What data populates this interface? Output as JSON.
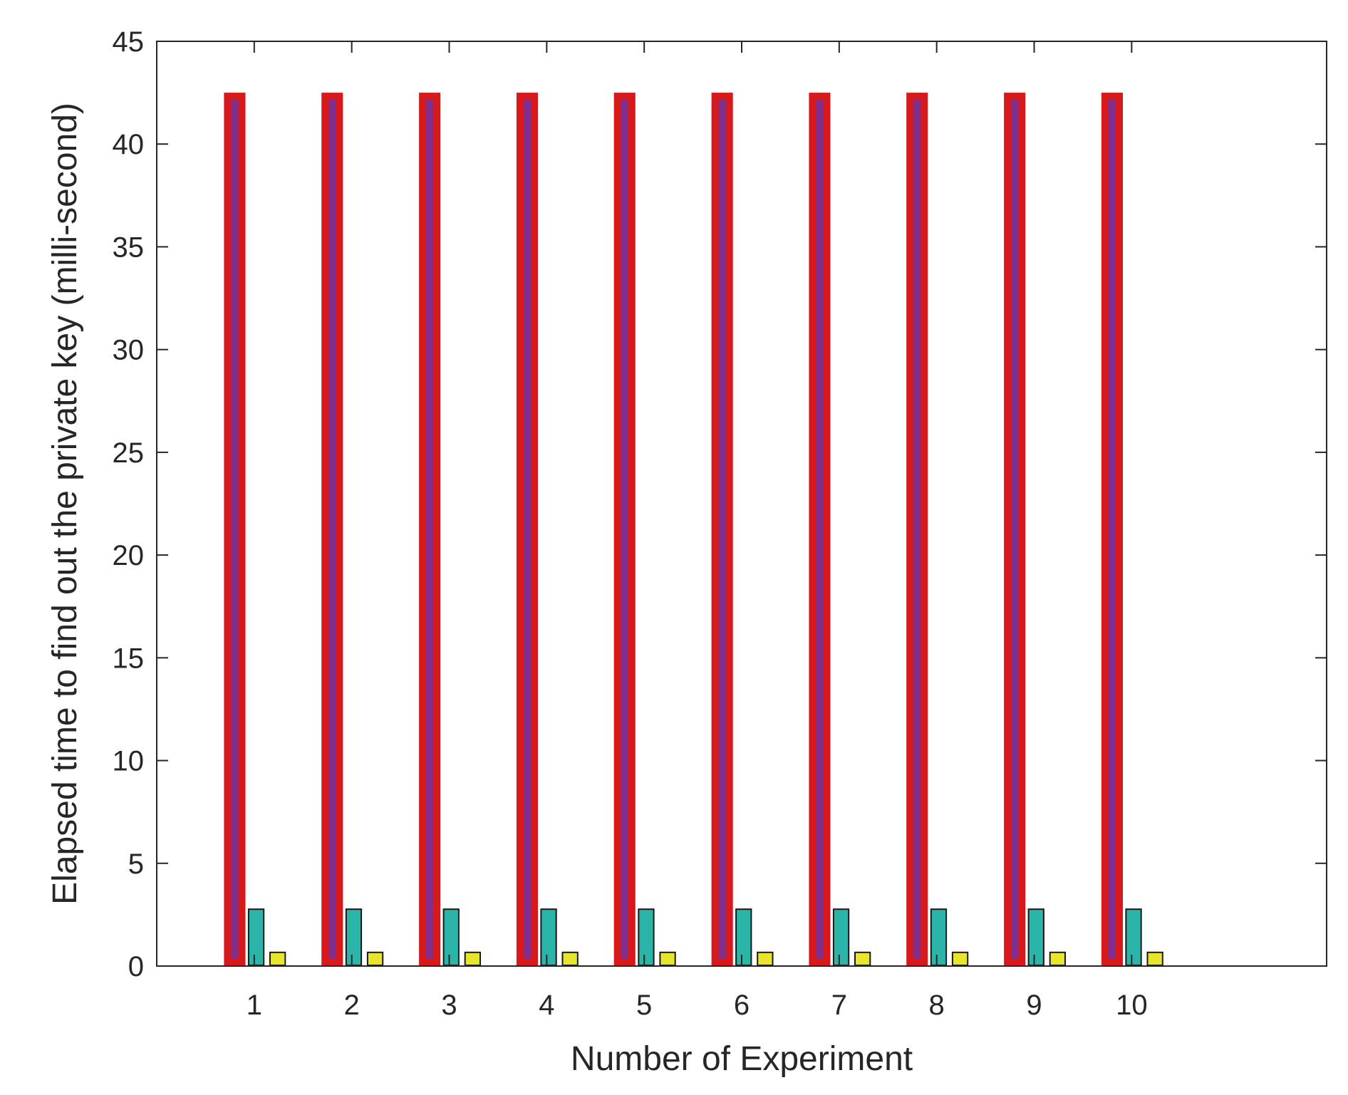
{
  "chart_data": {
    "type": "bar",
    "title": "",
    "xlabel": "Number of Experiment",
    "ylabel": "Elapsed time to find out the private key (milli-second)",
    "categories": [
      "1",
      "2",
      "3",
      "4",
      "5",
      "6",
      "7",
      "8",
      "9",
      "10"
    ],
    "xlim": [
      0,
      12
    ],
    "ylim": [
      0,
      45
    ],
    "yticks": [
      0,
      5,
      10,
      15,
      20,
      25,
      30,
      35,
      40,
      45
    ],
    "grid": false,
    "legend": "none",
    "series": [
      {
        "values": [
          42.5,
          42.5,
          42.5,
          42.5,
          42.5,
          42.5,
          42.5,
          42.5,
          42.5,
          42.5
        ],
        "color": "#7e2f8e",
        "edge_color": "#d7191c",
        "bar_offset": -0.2,
        "bar_width": 0.22
      },
      {
        "values": [
          2.8,
          2.8,
          2.8,
          2.8,
          2.8,
          2.8,
          2.8,
          2.8,
          2.8,
          2.8
        ],
        "color": "#2ab5a8",
        "edge_color": "#1a1a1a",
        "bar_offset": 0.02,
        "bar_width": 0.17
      },
      {
        "values": [
          0.7,
          0.7,
          0.7,
          0.7,
          0.7,
          0.7,
          0.7,
          0.7,
          0.7,
          0.7
        ],
        "color": "#e8e62c",
        "edge_color": "#1a1a1a",
        "bar_offset": 0.24,
        "bar_width": 0.17
      }
    ]
  }
}
